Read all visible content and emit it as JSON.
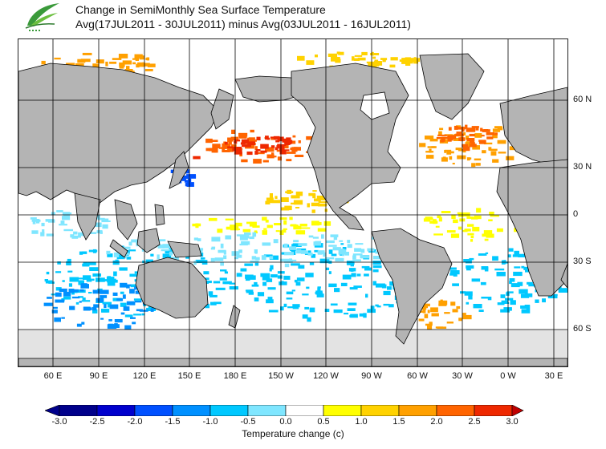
{
  "header": {
    "title_line1": "Change in SemiMonthly Sea Surface Temperature",
    "title_line2": "Avg(17JUL2011 - 30JUL2011) minus Avg(03JUL2011 - 16JUL2011)",
    "logo_icon": "leaf-logo-icon",
    "logo_caption": "香港天文台"
  },
  "map": {
    "latitude_labels": [
      "60 N",
      "30 N",
      "0",
      "30 S",
      "60 S"
    ],
    "longitude_labels": [
      "60 E",
      "90 E",
      "120 E",
      "150 E",
      "180 E",
      "150 W",
      "120 W",
      "90 W",
      "60 W",
      "30 W",
      "0 W",
      "30 E"
    ],
    "land_color": "#b4b4b4",
    "ice_color": "#e3e3e3",
    "grid_color": "#000000"
  },
  "colorbar": {
    "ticks": [
      "-3.0",
      "-2.5",
      "-2.0",
      "-1.5",
      "-1.0",
      "-0.5",
      "0.0",
      "0.5",
      "1.0",
      "1.5",
      "2.0",
      "2.5",
      "3.0"
    ],
    "colors": [
      "#00008b",
      "#0000cd",
      "#0050ff",
      "#0090ff",
      "#00c8ff",
      "#7fe6ff",
      "#ffffff",
      "#ffff00",
      "#ffd200",
      "#ffa000",
      "#ff6400",
      "#ee2800",
      "#c00000",
      "#c00000"
    ],
    "label": "Temperature change  (c)",
    "min": -3.0,
    "max": 3.0,
    "step": 0.5
  }
}
